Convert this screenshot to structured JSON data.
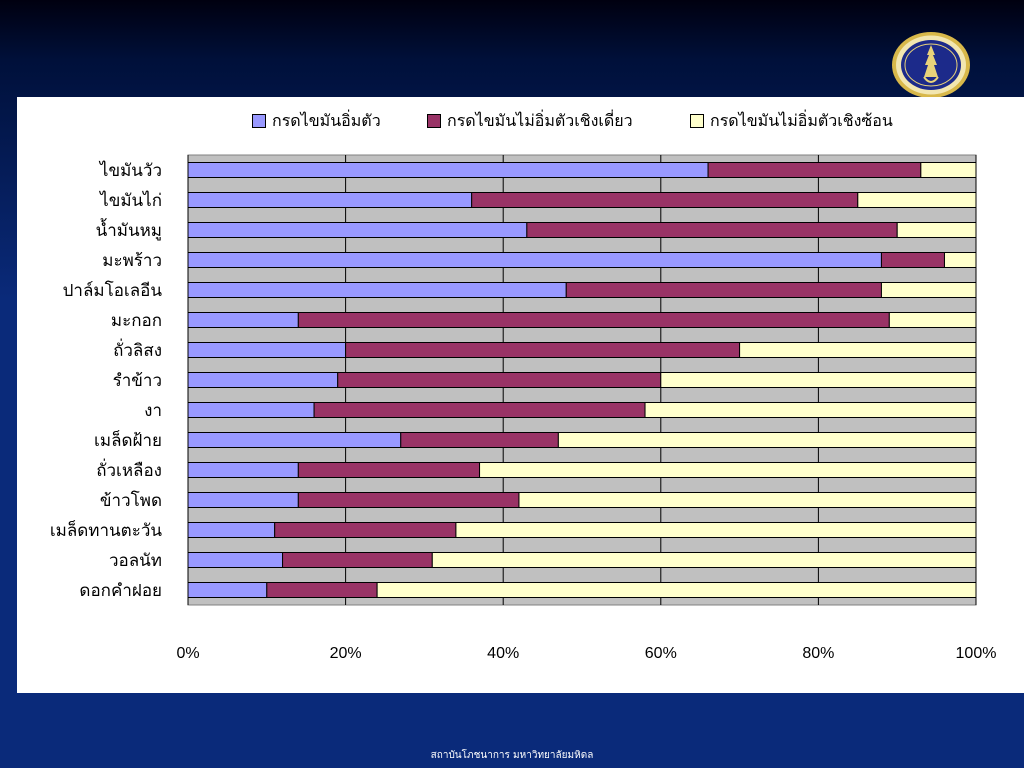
{
  "colors": {
    "background": "#0a2a7a",
    "panel": "#ffffff",
    "plot_area": "#c0c0c0",
    "series": [
      "#9999ff",
      "#993366",
      "#ffffcc"
    ]
  },
  "logo": {
    "name": "university-seal"
  },
  "footer": {
    "text": "สถาบันโภชนาการ มหาวิทยาลัยมหิดล"
  },
  "chart_data": {
    "type": "bar",
    "orientation": "horizontal",
    "stacked": "percent",
    "categories": [
      "ไขมันวัว",
      "ไขมันไก่",
      "น้ำมันหมู",
      "มะพร้าว",
      "ปาล์มโอเลอีน",
      "มะกอก",
      "ถั่วลิสง",
      "รำข้าว",
      "งา",
      "เมล็ดฝ้าย",
      "ถั่วเหลือง",
      "ข้าวโพด",
      "เมล็ดทานตะวัน",
      "วอลนัท",
      "ดอกคำฝอย"
    ],
    "series": [
      {
        "name": "กรดไขมันอิ่มตัว",
        "values": [
          66,
          36,
          43,
          88,
          48,
          14,
          20,
          19,
          16,
          27,
          14,
          14,
          11,
          12,
          10
        ]
      },
      {
        "name": "กรดไขมันไม่อิ่มตัวเชิงเดี่ยว",
        "values": [
          27,
          49,
          47,
          8,
          40,
          75,
          50,
          41,
          42,
          20,
          23,
          28,
          23,
          19,
          14
        ]
      },
      {
        "name": "กรดไขมันไม่อิ่มตัวเชิงซ้อน",
        "values": [
          7,
          15,
          10,
          4,
          12,
          11,
          30,
          40,
          42,
          53,
          63,
          58,
          66,
          69,
          76
        ]
      }
    ],
    "xlim": [
      0,
      100
    ],
    "x_ticks": [
      "0%",
      "20%",
      "40%",
      "60%",
      "80%",
      "100%"
    ],
    "grid": true,
    "legend_position": "top"
  }
}
